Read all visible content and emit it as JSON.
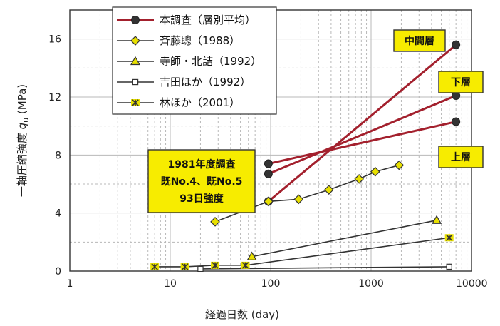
{
  "chart_data": {
    "type": "scatter",
    "xlabel": "経過日数 (day)",
    "ylabel_main": "一軸圧縮強度 ",
    "ylabel_var": "q",
    "ylabel_sub": "u",
    "ylabel_unit": " (MPa)",
    "xscale": "log",
    "xlim": [
      1,
      10000
    ],
    "ylim": [
      0,
      18
    ],
    "xticks": [
      {
        "value": 1,
        "label": "1"
      },
      {
        "value": 10,
        "label": "10"
      },
      {
        "value": 100,
        "label": "100"
      },
      {
        "value": 1000,
        "label": "1000"
      },
      {
        "value": 10000,
        "label": "10000"
      }
    ],
    "yticks": [
      {
        "value": 0,
        "label": "0"
      },
      {
        "value": 4,
        "label": "4"
      },
      {
        "value": 8,
        "label": "8"
      },
      {
        "value": 12,
        "label": "12"
      },
      {
        "value": 16,
        "label": "16"
      }
    ],
    "grid": true,
    "legend_position": "top-left",
    "series": [
      {
        "name": "本調査（層別平均）",
        "marker": "filled-circle",
        "color": "#a3202d",
        "segments": [
          [
            {
              "x": 95,
              "y": 4.8
            },
            {
              "x": 7000,
              "y": 15.6
            }
          ],
          [
            {
              "x": 95,
              "y": 6.7
            },
            {
              "x": 7000,
              "y": 12.1
            }
          ],
          [
            {
              "x": 95,
              "y": 7.4
            },
            {
              "x": 7000,
              "y": 10.3
            }
          ]
        ]
      },
      {
        "name": "斉藤聰（1988）",
        "marker": "diamond",
        "color": "#e8e000",
        "segments": [
          [
            {
              "x": 28,
              "y": 3.4
            },
            {
              "x": 95,
              "y": 4.8
            },
            {
              "x": 190,
              "y": 4.95
            },
            {
              "x": 380,
              "y": 5.6
            },
            {
              "x": 760,
              "y": 6.35
            },
            {
              "x": 1100,
              "y": 6.85
            },
            {
              "x": 1900,
              "y": 7.3
            }
          ]
        ]
      },
      {
        "name": "寺師・北詰（1992）",
        "marker": "triangle",
        "color": "#e8e000",
        "segments": [
          [
            {
              "x": 65,
              "y": 1.0
            },
            {
              "x": 4500,
              "y": 3.5
            }
          ]
        ]
      },
      {
        "name": "吉田ほか（1992）",
        "marker": "open-square",
        "color": "#ffffff",
        "segments": [
          [
            {
              "x": 20,
              "y": 0.15
            },
            {
              "x": 6000,
              "y": 0.3
            }
          ]
        ]
      },
      {
        "name": "林ほか（2001）",
        "marker": "asterisk",
        "color": "#e8e000",
        "segments": [
          [
            {
              "x": 7,
              "y": 0.3
            },
            {
              "x": 14,
              "y": 0.3
            },
            {
              "x": 28,
              "y": 0.4
            },
            {
              "x": 56,
              "y": 0.4
            },
            {
              "x": 6000,
              "y": 2.3
            }
          ]
        ]
      }
    ],
    "annotations": [
      {
        "lines": [
          "1981年度調査",
          "既No.4、既No.5",
          "93日強度"
        ],
        "kind": "note"
      },
      {
        "lines": [
          "中間層"
        ],
        "kind": "label"
      },
      {
        "lines": [
          "下層"
        ],
        "kind": "label"
      },
      {
        "lines": [
          "上層"
        ],
        "kind": "label"
      }
    ]
  }
}
